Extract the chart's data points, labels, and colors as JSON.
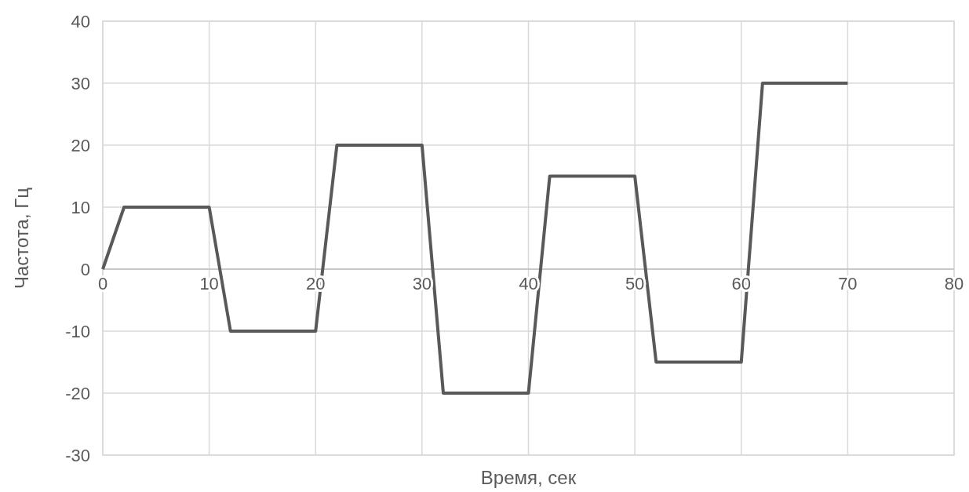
{
  "chart_data": {
    "type": "line",
    "xlabel": "Время, сек",
    "ylabel": "Частота, Гц",
    "x": [
      0,
      2,
      10,
      12,
      20,
      22,
      30,
      32,
      40,
      42,
      50,
      52,
      60,
      62,
      70
    ],
    "series": [
      {
        "color": "#595959",
        "values": [
          0,
          10,
          10,
          -10,
          -10,
          20,
          20,
          -20,
          -20,
          15,
          15,
          -15,
          -15,
          30,
          30
        ]
      }
    ],
    "xlim": [
      0,
      80
    ],
    "xticks": [
      0,
      10,
      20,
      30,
      40,
      50,
      60,
      70,
      80
    ],
    "ylim": [
      -30,
      40
    ],
    "yticks": [
      -30,
      -20,
      -10,
      0,
      10,
      20,
      30,
      40
    ],
    "grid": true,
    "marker": "none",
    "line_style": "solid"
  }
}
